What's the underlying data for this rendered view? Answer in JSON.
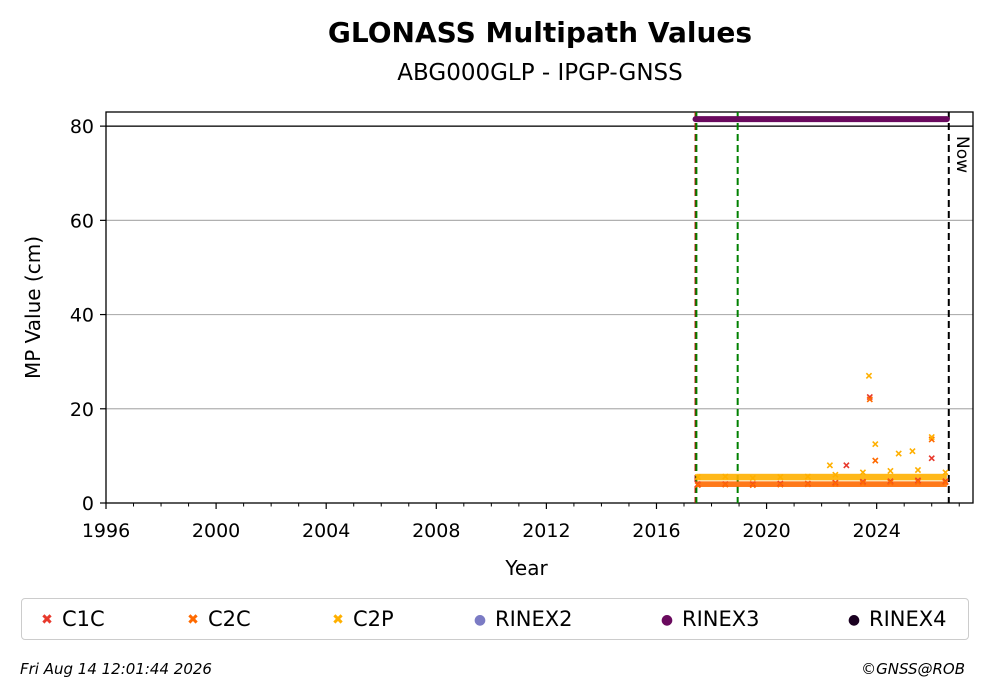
{
  "chart_data": {
    "type": "scatter",
    "title": "GLONASS Multipath Values",
    "subtitle": "ABG000GLP - IPGP-GNSS",
    "xlabel": "Year",
    "ylabel": "MP Value (cm)",
    "xlim": [
      1996,
      2027.5
    ],
    "ylim": [
      0,
      83
    ],
    "x_ticks": [
      1996,
      2000,
      2004,
      2008,
      2012,
      2016,
      2020,
      2024
    ],
    "y_ticks": [
      0,
      20,
      40,
      60,
      80
    ],
    "grid": "horizontal",
    "now_label": "Now",
    "now_x": 2026.62,
    "vertical_lines": [
      {
        "x": 2017.42,
        "color": "#cc0000",
        "style": "dashed"
      },
      {
        "x": 2017.45,
        "color": "#008000",
        "style": "dashed"
      },
      {
        "x": 2018.95,
        "color": "#008000",
        "style": "dashed"
      },
      {
        "x": 2026.62,
        "color": "#000000",
        "style": "dashed"
      }
    ],
    "series": [
      {
        "name": "C1C",
        "marker": "x",
        "color": "#e8392c",
        "x": [
          2017.5,
          2018.5,
          2019.5,
          2020.5,
          2021.5,
          2022.5,
          2022.9,
          2023.5,
          2023.75,
          2024.5,
          2025.5,
          2026.0,
          2026.5
        ],
        "y": [
          4.0,
          4.0,
          4.0,
          4.1,
          4.1,
          4.3,
          8.0,
          4.5,
          22.5,
          4.6,
          4.8,
          9.5,
          4.6
        ]
      },
      {
        "name": "C2C",
        "marker": "x",
        "color": "#ff6a00",
        "x": [
          2017.5,
          2018.5,
          2019.5,
          2020.5,
          2021.5,
          2022.5,
          2023.5,
          2023.75,
          2023.95,
          2024.5,
          2025.5,
          2026.0,
          2026.5
        ],
        "y": [
          3.8,
          3.9,
          3.8,
          3.9,
          4.0,
          4.1,
          4.3,
          22.0,
          9.0,
          4.4,
          4.5,
          13.5,
          4.4
        ]
      },
      {
        "name": "C2P",
        "marker": "x",
        "color": "#ffb000",
        "x": [
          2017.5,
          2018.5,
          2019.5,
          2020.5,
          2021.5,
          2022.3,
          2022.5,
          2023.5,
          2023.72,
          2023.95,
          2024.5,
          2024.8,
          2025.3,
          2025.5,
          2026.0,
          2026.5
        ],
        "y": [
          5.5,
          5.6,
          5.3,
          5.5,
          5.6,
          8.0,
          6.0,
          6.5,
          27.0,
          12.5,
          6.8,
          10.5,
          11.0,
          7.0,
          14.0,
          6.5
        ]
      },
      {
        "name": "RINEX2",
        "marker": "dot",
        "color": "#7b7bc4",
        "x": [],
        "y": []
      },
      {
        "name": "RINEX3",
        "marker": "dot",
        "color": "#6a0a5e",
        "x": [
          2017.42,
          2026.55
        ],
        "y": [
          81.5,
          81.5
        ]
      },
      {
        "name": "RINEX4",
        "marker": "dot",
        "color": "#1a0020",
        "x": [],
        "y": []
      }
    ]
  },
  "footer": {
    "timestamp": "Fri Aug 14 12:01:44 2026",
    "copyright": "©GNSS@ROB"
  }
}
